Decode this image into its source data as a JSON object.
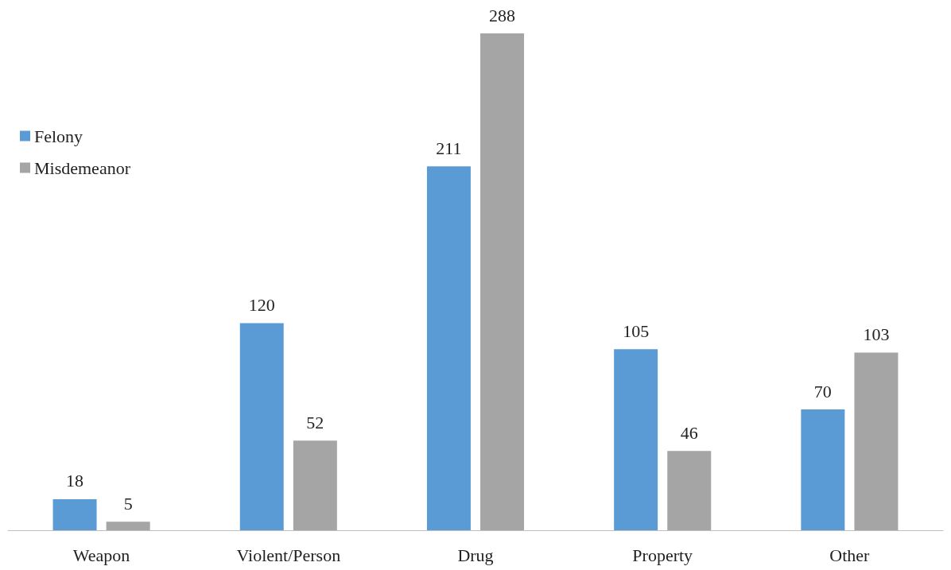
{
  "chart_data": {
    "type": "bar",
    "categories": [
      "Weapon",
      "Violent/Person",
      "Drug",
      "Property",
      "Other"
    ],
    "series": [
      {
        "name": "Felony",
        "color": "#5b9bd5",
        "values": [
          18,
          120,
          211,
          105,
          70
        ]
      },
      {
        "name": "Misdemeanor",
        "color": "#a5a5a5",
        "values": [
          5,
          52,
          288,
          46,
          103
        ]
      }
    ],
    "data_labels": true,
    "legend": "top left"
  }
}
